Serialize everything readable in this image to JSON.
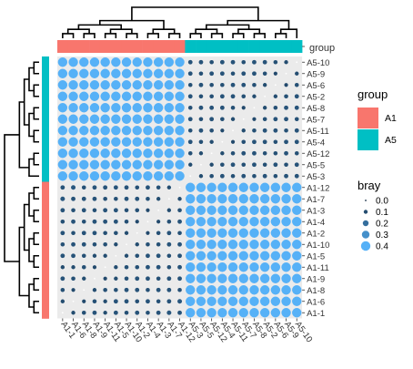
{
  "chart_data": {
    "type": "heatmap",
    "title": "",
    "xlabel": "",
    "ylabel": "",
    "annotation_label": "group",
    "x_labels": [
      "A1-1",
      "A1-6",
      "A1-8",
      "A1-9",
      "A1-11",
      "A1-5",
      "A1-10",
      "A1-2",
      "A1-4",
      "A1-3",
      "A1-7",
      "A1-12",
      "A5-3",
      "A5-5",
      "A5-12",
      "A5-4",
      "A5-11",
      "A5-7",
      "A5-8",
      "A5-2",
      "A5-6",
      "A5-9",
      "A5-10"
    ],
    "y_labels": [
      "A5-10",
      "A5-9",
      "A5-6",
      "A5-2",
      "A5-8",
      "A5-7",
      "A5-11",
      "A5-4",
      "A5-12",
      "A5-5",
      "A5-3",
      "A1-12",
      "A1-7",
      "A1-3",
      "A1-4",
      "A1-2",
      "A1-10",
      "A1-5",
      "A1-11",
      "A1-9",
      "A1-8",
      "A1-6",
      "A1-1"
    ],
    "groups": {
      "A1-1": "A1",
      "A1-6": "A1",
      "A1-8": "A1",
      "A1-9": "A1",
      "A1-11": "A1",
      "A1-5": "A1",
      "A1-10": "A1",
      "A1-2": "A1",
      "A1-4": "A1",
      "A1-3": "A1",
      "A1-7": "A1",
      "A1-12": "A1",
      "A5-3": "A5",
      "A5-5": "A5",
      "A5-12": "A5",
      "A5-4": "A5",
      "A5-11": "A5",
      "A5-7": "A5",
      "A5-8": "A5",
      "A5-2": "A5",
      "A5-6": "A5",
      "A5-9": "A5",
      "A5-10": "A5"
    },
    "within_group_bray": {
      "A1": [
        [
          0.0,
          0.1,
          0.11,
          0.12,
          0.1,
          0.12,
          0.11,
          0.12,
          0.11,
          0.12,
          0.13,
          0.12
        ],
        [
          0.1,
          0.0,
          0.09,
          0.11,
          0.1,
          0.12,
          0.12,
          0.11,
          0.12,
          0.11,
          0.12,
          0.13
        ],
        [
          0.11,
          0.09,
          0.0,
          0.1,
          0.11,
          0.11,
          0.12,
          0.12,
          0.11,
          0.12,
          0.12,
          0.11
        ],
        [
          0.12,
          0.11,
          0.1,
          0.0,
          0.09,
          0.1,
          0.11,
          0.12,
          0.12,
          0.11,
          0.12,
          0.12
        ],
        [
          0.1,
          0.1,
          0.11,
          0.09,
          0.0,
          0.1,
          0.11,
          0.11,
          0.12,
          0.12,
          0.11,
          0.12
        ],
        [
          0.12,
          0.12,
          0.11,
          0.1,
          0.1,
          0.0,
          0.1,
          0.11,
          0.12,
          0.12,
          0.11,
          0.12
        ],
        [
          0.11,
          0.12,
          0.12,
          0.11,
          0.11,
          0.1,
          0.0,
          0.1,
          0.11,
          0.11,
          0.12,
          0.12
        ],
        [
          0.12,
          0.11,
          0.12,
          0.12,
          0.11,
          0.11,
          0.1,
          0.0,
          0.09,
          0.11,
          0.12,
          0.11
        ],
        [
          0.11,
          0.12,
          0.11,
          0.12,
          0.12,
          0.12,
          0.11,
          0.09,
          0.0,
          0.09,
          0.11,
          0.12
        ],
        [
          0.12,
          0.11,
          0.12,
          0.11,
          0.12,
          0.12,
          0.11,
          0.11,
          0.09,
          0.0,
          0.1,
          0.11
        ],
        [
          0.13,
          0.12,
          0.12,
          0.12,
          0.11,
          0.11,
          0.12,
          0.12,
          0.11,
          0.1,
          0.0,
          0.1
        ],
        [
          0.12,
          0.13,
          0.11,
          0.12,
          0.12,
          0.12,
          0.12,
          0.11,
          0.12,
          0.11,
          0.1,
          0.0
        ]
      ],
      "A5": [
        [
          0.0,
          0.1,
          0.11,
          0.12,
          0.11,
          0.12,
          0.11,
          0.12,
          0.11,
          0.12,
          0.12
        ],
        [
          0.1,
          0.0,
          0.1,
          0.11,
          0.12,
          0.11,
          0.12,
          0.11,
          0.12,
          0.11,
          0.12
        ],
        [
          0.11,
          0.1,
          0.0,
          0.1,
          0.11,
          0.12,
          0.12,
          0.11,
          0.11,
          0.12,
          0.11
        ],
        [
          0.12,
          0.11,
          0.1,
          0.0,
          0.09,
          0.11,
          0.12,
          0.12,
          0.11,
          0.12,
          0.12
        ],
        [
          0.11,
          0.12,
          0.11,
          0.09,
          0.0,
          0.1,
          0.11,
          0.12,
          0.12,
          0.11,
          0.12
        ],
        [
          0.12,
          0.11,
          0.12,
          0.11,
          0.1,
          0.0,
          0.09,
          0.11,
          0.12,
          0.12,
          0.11
        ],
        [
          0.11,
          0.12,
          0.12,
          0.12,
          0.11,
          0.09,
          0.0,
          0.1,
          0.11,
          0.12,
          0.12
        ],
        [
          0.12,
          0.11,
          0.11,
          0.12,
          0.12,
          0.11,
          0.1,
          0.0,
          0.1,
          0.11,
          0.12
        ],
        [
          0.11,
          0.12,
          0.11,
          0.11,
          0.12,
          0.12,
          0.11,
          0.1,
          0.0,
          0.09,
          0.11
        ],
        [
          0.12,
          0.11,
          0.12,
          0.12,
          0.11,
          0.12,
          0.12,
          0.11,
          0.09,
          0.0,
          0.1
        ],
        [
          0.12,
          0.12,
          0.11,
          0.12,
          0.12,
          0.11,
          0.12,
          0.12,
          0.11,
          0.1,
          0.0
        ]
      ]
    },
    "between_group_bray": 0.4,
    "size_legend_title": "bray",
    "size_legend_values": [
      "0.0",
      "0.1",
      "0.2",
      "0.3",
      "0.4"
    ],
    "color_low": "#132b43",
    "color_high": "#56b1f7",
    "tile_background": "#ebebeb"
  },
  "legend_group": {
    "title": "group",
    "items": [
      {
        "label": "A1",
        "color": "#f8766d"
      },
      {
        "label": "A5",
        "color": "#00bfc4"
      }
    ]
  },
  "dendrogram_color": "#000000"
}
